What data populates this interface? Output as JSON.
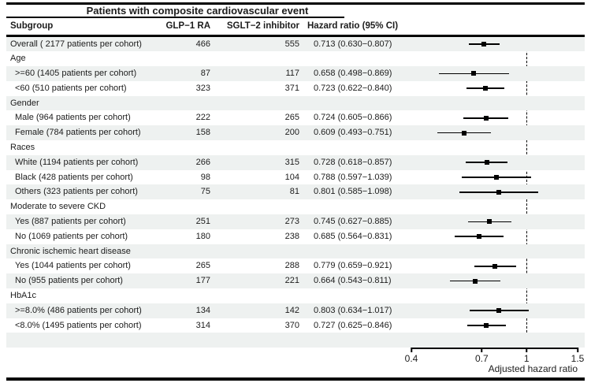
{
  "colors": {
    "stripe": "#eef1f0",
    "line": "#000000",
    "marker": "#000000",
    "text": "#1c1c1c"
  },
  "chart_data": {
    "type": "forest",
    "title": "Patients with composite cardiovascular event",
    "xlabel": "Adjusted hazard ratio",
    "xscale": "log",
    "xlim": [
      0.4,
      1.5
    ],
    "xticks": [
      0.4,
      0.7,
      1,
      1.5
    ],
    "reference_line": 1,
    "legend_position": "none",
    "grid": false,
    "columns": {
      "subgroup": "Subgroup",
      "glp1": "GLP−1 RA",
      "sglt2": "SGLT−2 inhibitor",
      "hr": "Hazard ratio (95% CI)"
    },
    "rows": [
      {
        "label": "Overall ( 2177 patients per cohort)",
        "glp1": "466",
        "sglt2": "555",
        "hr_text": "0.713 (0.630−0.807)",
        "hr": 0.713,
        "lo": 0.63,
        "hi": 0.807
      },
      {
        "label": "Age",
        "section": true
      },
      {
        "label": ">=60 (1405 patients per cohort)",
        "indent": true,
        "glp1": "87",
        "sglt2": "117",
        "hr_text": "0.658 (0.498−0.869)",
        "hr": 0.658,
        "lo": 0.498,
        "hi": 0.869
      },
      {
        "label": "<60 (510 patients per cohort)",
        "indent": true,
        "glp1": "323",
        "sglt2": "371",
        "hr_text": "0.723 (0.622−0.840)",
        "hr": 0.723,
        "lo": 0.622,
        "hi": 0.84
      },
      {
        "label": "Gender",
        "section": true
      },
      {
        "label": "Male (964 patients per cohort)",
        "indent": true,
        "glp1": "222",
        "sglt2": "265",
        "hr_text": "0.724 (0.605−0.866)",
        "hr": 0.724,
        "lo": 0.605,
        "hi": 0.866
      },
      {
        "label": "Female (784 patients per cohort)",
        "indent": true,
        "glp1": "158",
        "sglt2": "200",
        "hr_text": "0.609 (0.493−0.751)",
        "hr": 0.609,
        "lo": 0.493,
        "hi": 0.751
      },
      {
        "label": "Races",
        "section": true
      },
      {
        "label": "White (1194 patients per cohort)",
        "indent": true,
        "glp1": "266",
        "sglt2": "315",
        "hr_text": "0.728 (0.618−0.857)",
        "hr": 0.728,
        "lo": 0.618,
        "hi": 0.857
      },
      {
        "label": "Black (428 patients per cohort)",
        "indent": true,
        "glp1": "98",
        "sglt2": "104",
        "hr_text": "0.788 (0.597−1.039)",
        "hr": 0.788,
        "lo": 0.597,
        "hi": 1.039
      },
      {
        "label": "Others (323 patients per cohort)",
        "indent": true,
        "glp1": "75",
        "sglt2": "81",
        "hr_text": "0.801 (0.585−1.098)",
        "hr": 0.801,
        "lo": 0.585,
        "hi": 1.098
      },
      {
        "label": "Moderate to severe CKD",
        "section": true
      },
      {
        "label": "Yes (887 patients per cohort)",
        "indent": true,
        "glp1": "251",
        "sglt2": "273",
        "hr_text": "0.745 (0.627−0.885)",
        "hr": 0.745,
        "lo": 0.627,
        "hi": 0.885
      },
      {
        "label": "No (1069 patients per cohort)",
        "indent": true,
        "glp1": "180",
        "sglt2": "238",
        "hr_text": "0.685 (0.564−0.831)",
        "hr": 0.685,
        "lo": 0.564,
        "hi": 0.831
      },
      {
        "label": "Chronic ischemic heart disease",
        "section": true
      },
      {
        "label": "Yes (1044 patients per cohort)",
        "indent": true,
        "glp1": "265",
        "sglt2": "288",
        "hr_text": "0.779 (0.659−0.921)",
        "hr": 0.779,
        "lo": 0.659,
        "hi": 0.921
      },
      {
        "label": "No (955 patients per cohort)",
        "indent": true,
        "glp1": "177",
        "sglt2": "221",
        "hr_text": "0.664 (0.543−0.811)",
        "hr": 0.664,
        "lo": 0.543,
        "hi": 0.811
      },
      {
        "label": "HbA1c",
        "section": true
      },
      {
        "label": ">=8.0% (486 patients per cohort)",
        "indent": true,
        "glp1": "134",
        "sglt2": "142",
        "hr_text": "0.803 (0.634−1.017)",
        "hr": 0.803,
        "lo": 0.634,
        "hi": 1.017
      },
      {
        "label": "<8.0% (1495 patients per cohort)",
        "indent": true,
        "glp1": "314",
        "sglt2": "370",
        "hr_text": "0.727 (0.625−0.846)",
        "hr": 0.727,
        "lo": 0.625,
        "hi": 0.846
      }
    ]
  }
}
